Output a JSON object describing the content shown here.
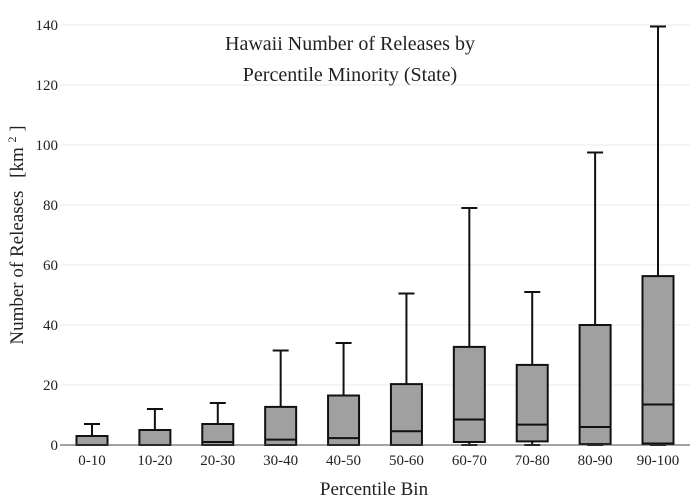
{
  "chart_data": {
    "type": "box",
    "title_line1": "Hawaii Number of Releases by",
    "title_line2": "Percentile Minority (State)",
    "xlabel": "Percentile Bin",
    "ylabel": "Number of Releases",
    "ylabel_unit": "[km",
    "ylabel_unit_sup": "2",
    "ylabel_unit_close": "]",
    "ylim": [
      0,
      140
    ],
    "yticks": [
      "0",
      "20",
      "40",
      "60",
      "80",
      "100",
      "120",
      "140"
    ],
    "grid": true,
    "box_color": "#a0a0a0",
    "categories": [
      "0-10",
      "10-20",
      "20-30",
      "30-40",
      "40-50",
      "50-60",
      "60-70",
      "70-80",
      "80-90",
      "90-100"
    ],
    "boxes": [
      {
        "min": 0,
        "q1": 0,
        "median": 0,
        "q3": 3,
        "max": 7
      },
      {
        "min": 0,
        "q1": 0,
        "median": 0,
        "q3": 5,
        "max": 12
      },
      {
        "min": 0,
        "q1": 0,
        "median": 1,
        "q3": 7,
        "max": 14
      },
      {
        "min": 0,
        "q1": 0,
        "median": 1.8,
        "q3": 12.7,
        "max": 31.5
      },
      {
        "min": 0,
        "q1": 0,
        "median": 2.3,
        "q3": 16.5,
        "max": 34
      },
      {
        "min": 0,
        "q1": 0,
        "median": 4.6,
        "q3": 20.3,
        "max": 50.5
      },
      {
        "min": 0,
        "q1": 1,
        "median": 8.5,
        "q3": 32.7,
        "max": 79
      },
      {
        "min": 0,
        "q1": 1.2,
        "median": 6.8,
        "q3": 26.7,
        "max": 51
      },
      {
        "min": 0,
        "q1": 0.3,
        "median": 6,
        "q3": 40,
        "max": 97.5
      },
      {
        "min": 0,
        "q1": 0.5,
        "median": 13.5,
        "q3": 56.3,
        "max": 139.5
      }
    ]
  }
}
